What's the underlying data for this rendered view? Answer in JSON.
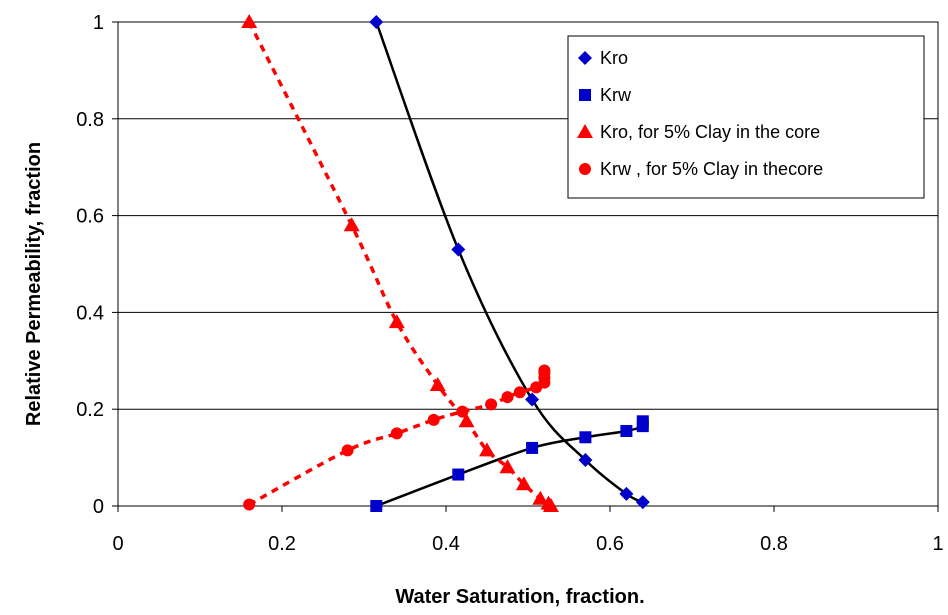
{
  "chart_data": {
    "type": "scatter",
    "xlabel": "Water Saturation, fraction.",
    "ylabel": "Relative Permeability, fraction",
    "xlim": [
      0,
      1
    ],
    "ylim": [
      0,
      1
    ],
    "xticks": [
      0,
      0.2,
      0.4,
      0.6,
      0.8,
      1
    ],
    "yticks": [
      0,
      0.2,
      0.4,
      0.6,
      0.8,
      1
    ],
    "xtick_labels": [
      "0",
      "0.2",
      "0.4",
      "0.6",
      "0.8",
      "1"
    ],
    "ytick_labels": [
      "0",
      "0.2",
      "0.4",
      "0.6",
      "0.8",
      "1"
    ],
    "grid": "horizontal",
    "legend_position": "top-right",
    "series": [
      {
        "name": "Kro",
        "marker": "diamond",
        "color": "#0000CC",
        "line_color": "#000000",
        "line_style": "solid",
        "x": [
          0.315,
          0.415,
          0.505,
          0.57,
          0.62,
          0.64
        ],
        "y": [
          1.0,
          0.53,
          0.22,
          0.095,
          0.025,
          0.008
        ]
      },
      {
        "name": "Krw",
        "marker": "square",
        "color": "#0000CC",
        "line_color": "#000000",
        "line_style": "solid",
        "x": [
          0.315,
          0.415,
          0.505,
          0.57,
          0.62,
          0.64,
          0.64
        ],
        "y": [
          0.0,
          0.065,
          0.12,
          0.142,
          0.155,
          0.165,
          0.175
        ]
      },
      {
        "name": "Kro, for 5% Clay in the core",
        "marker": "triangle",
        "color": "#FF0000",
        "line_color": "#FF0000",
        "line_style": "dashed",
        "x": [
          0.16,
          0.285,
          0.34,
          0.39,
          0.425,
          0.45,
          0.475,
          0.495,
          0.515,
          0.525,
          0.528
        ],
        "y": [
          1.0,
          0.58,
          0.38,
          0.25,
          0.175,
          0.115,
          0.08,
          0.045,
          0.015,
          0.005,
          0.0
        ]
      },
      {
        "name": "Krw , for 5% Clay in thecore",
        "marker": "circle",
        "color": "#FF0000",
        "line_color": "#FF0000",
        "line_style": "dashed",
        "x": [
          0.16,
          0.28,
          0.34,
          0.385,
          0.42,
          0.455,
          0.475,
          0.49,
          0.51,
          0.52,
          0.52,
          0.52,
          0.52
        ],
        "y": [
          0.003,
          0.115,
          0.15,
          0.178,
          0.195,
          0.21,
          0.225,
          0.235,
          0.245,
          0.255,
          0.265,
          0.275,
          0.28
        ]
      }
    ]
  }
}
